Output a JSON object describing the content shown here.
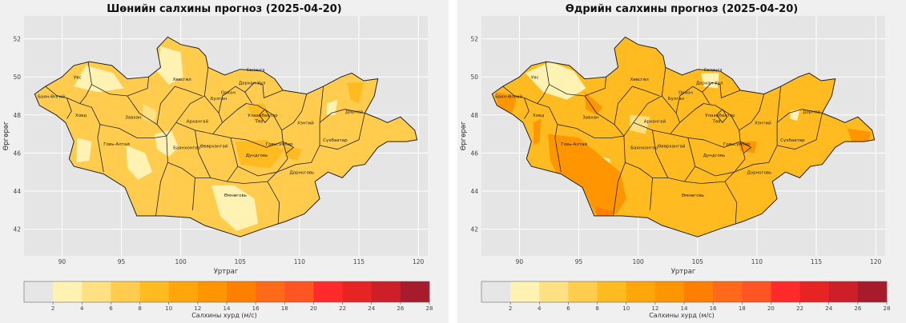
{
  "maps": [
    {
      "title": "Шөнийн салхины прогноз (2025-04-20)",
      "variant": "night"
    },
    {
      "title": "Өдрийн салхины прогноз (2025-04-20)",
      "variant": "day"
    }
  ],
  "axes": {
    "xlabel": "Уртраг",
    "ylabel": "Өргөрөг",
    "xticks": [
      "90",
      "95",
      "100",
      "105",
      "110",
      "115",
      "120"
    ],
    "yticks": [
      "52",
      "50",
      "48",
      "46",
      "44",
      "42"
    ]
  },
  "colorbar": {
    "label": "Салхины хурд (м/с)",
    "ticks": [
      "2",
      "4",
      "6",
      "8",
      "10",
      "12",
      "14",
      "16",
      "18",
      "20",
      "22",
      "24",
      "26",
      "28"
    ],
    "colors": [
      "#e6e6e6",
      "#fff2b3",
      "#ffe082",
      "#ffcc4d",
      "#ffbb1f",
      "#ffa60a",
      "#ff9500",
      "#ff8000",
      "#ff6a1a",
      "#ff5522",
      "#ff2a2a",
      "#e62424",
      "#cc1f2a",
      "#a61c2c"
    ]
  },
  "regions": [
    {
      "name": "Увс",
      "lon": 91.3,
      "lat": 49.9
    },
    {
      "name": "Баян-Өлгий",
      "lon": 89.1,
      "lat": 48.9
    },
    {
      "name": "Ховд",
      "lon": 91.6,
      "lat": 47.9
    },
    {
      "name": "Завхан",
      "lon": 96.0,
      "lat": 47.8
    },
    {
      "name": "Хөвсгөл",
      "lon": 100.1,
      "lat": 49.8
    },
    {
      "name": "Булган",
      "lon": 103.2,
      "lat": 48.8
    },
    {
      "name": "Орхон",
      "lon": 104.0,
      "lat": 49.1
    },
    {
      "name": "Сэлэнгэ",
      "lon": 106.3,
      "lat": 50.3
    },
    {
      "name": "Дархан-Уул",
      "lon": 106.0,
      "lat": 49.6
    },
    {
      "name": "Архангай",
      "lon": 101.4,
      "lat": 47.6
    },
    {
      "name": "Улаанбаатар",
      "lon": 106.9,
      "lat": 47.9
    },
    {
      "name": "Төв",
      "lon": 106.6,
      "lat": 47.6
    },
    {
      "name": "Хэнтий",
      "lon": 110.5,
      "lat": 47.5
    },
    {
      "name": "Дорнод",
      "lon": 114.6,
      "lat": 48.1
    },
    {
      "name": "Сүхбаатар",
      "lon": 113.0,
      "lat": 46.6
    },
    {
      "name": "Говь-Алтай",
      "lon": 94.6,
      "lat": 46.4
    },
    {
      "name": "Баянхонгор",
      "lon": 100.5,
      "lat": 46.2
    },
    {
      "name": "Өвөрхангай",
      "lon": 102.8,
      "lat": 46.3
    },
    {
      "name": "Говьсүмбэр",
      "lon": 108.3,
      "lat": 46.4
    },
    {
      "name": "Дундговь",
      "lon": 106.4,
      "lat": 45.8
    },
    {
      "name": "Дорноговь",
      "lon": 110.2,
      "lat": 44.9
    },
    {
      "name": "Өмнөговь",
      "lon": 104.6,
      "lat": 43.7
    }
  ]
}
